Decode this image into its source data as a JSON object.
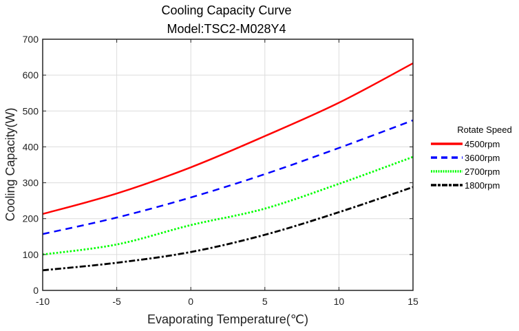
{
  "chart_data": {
    "type": "line",
    "title": "Cooling Capacity Curve",
    "subtitle": "Model:TSC2-M028Y4",
    "xlabel": "Evaporating Temperature(℃)",
    "ylabel": "Cooling Capacity(W)",
    "xlim": [
      -10,
      15
    ],
    "ylim": [
      0,
      700
    ],
    "xticks": [
      -10,
      -5,
      0,
      5,
      10,
      15
    ],
    "yticks": [
      0,
      100,
      200,
      300,
      400,
      500,
      600,
      700
    ],
    "xtick_labels": [
      "-10",
      "-5",
      "0",
      "5",
      "10",
      "15"
    ],
    "ytick_labels": [
      "0",
      "100",
      "200",
      "300",
      "400",
      "500",
      "600",
      "700"
    ],
    "grid": true,
    "legend": {
      "title": "Rotate Speed",
      "placement": "right-outside"
    },
    "x": [
      -10,
      -5,
      0,
      5,
      10,
      15
    ],
    "series": [
      {
        "name": "4500rpm",
        "color": "#ff0000",
        "style": "solid",
        "values": [
          213,
          270,
          343,
          430,
          523,
          633
        ]
      },
      {
        "name": "3600rpm",
        "color": "#0000ff",
        "style": "dashed",
        "values": [
          157,
          203,
          259,
          324,
          397,
          474
        ]
      },
      {
        "name": "2700rpm",
        "color": "#00ff00",
        "style": "dotted",
        "values": [
          100,
          128,
          182,
          228,
          297,
          372
        ]
      },
      {
        "name": "1800rpm",
        "color": "#000000",
        "style": "dashdot",
        "values": [
          56,
          77,
          107,
          155,
          218,
          288
        ]
      }
    ]
  }
}
